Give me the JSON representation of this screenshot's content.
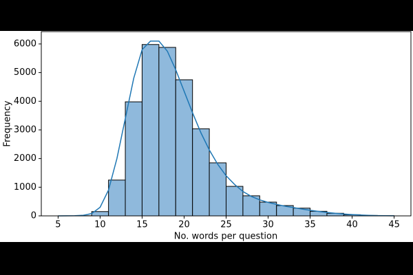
{
  "chart_data": {
    "type": "histogram",
    "xlabel": "No. words per question",
    "ylabel": "Frequency",
    "bins": [
      5,
      7,
      9,
      11,
      13,
      15,
      17,
      19,
      21,
      23,
      25,
      27,
      29,
      31,
      33,
      35,
      37,
      39,
      41,
      43,
      45
    ],
    "values": [
      0,
      5,
      150,
      1250,
      3980,
      5980,
      5880,
      4750,
      3040,
      1850,
      1030,
      700,
      480,
      360,
      270,
      160,
      90,
      40,
      15,
      5
    ],
    "color": "#8fb9dc",
    "edgecolor": "#000000",
    "kde": {
      "color": "#1f77b4",
      "x": [
        5,
        6,
        7,
        8,
        9,
        10,
        11,
        12,
        13,
        14,
        15,
        16,
        17,
        18,
        19,
        20,
        21,
        22,
        23,
        24,
        25,
        26,
        27,
        28,
        29,
        30,
        31,
        32,
        33,
        34,
        35,
        36,
        37,
        38,
        39,
        40,
        41,
        42,
        43,
        44,
        45
      ],
      "values": [
        0,
        2,
        5,
        20,
        80,
        300,
        900,
        2000,
        3400,
        4800,
        5800,
        6100,
        6100,
        5750,
        5100,
        4350,
        3600,
        2900,
        2300,
        1800,
        1400,
        1100,
        850,
        680,
        560,
        470,
        400,
        340,
        290,
        240,
        195,
        155,
        120,
        90,
        65,
        45,
        30,
        18,
        10,
        5,
        2
      ]
    },
    "xlim": [
      3,
      47
    ],
    "ylim": [
      0,
      6430
    ],
    "xticks": [
      5,
      10,
      15,
      20,
      25,
      30,
      35,
      40,
      45
    ],
    "yticks": [
      0,
      1000,
      2000,
      3000,
      4000,
      5000,
      6000
    ],
    "grid": false
  }
}
